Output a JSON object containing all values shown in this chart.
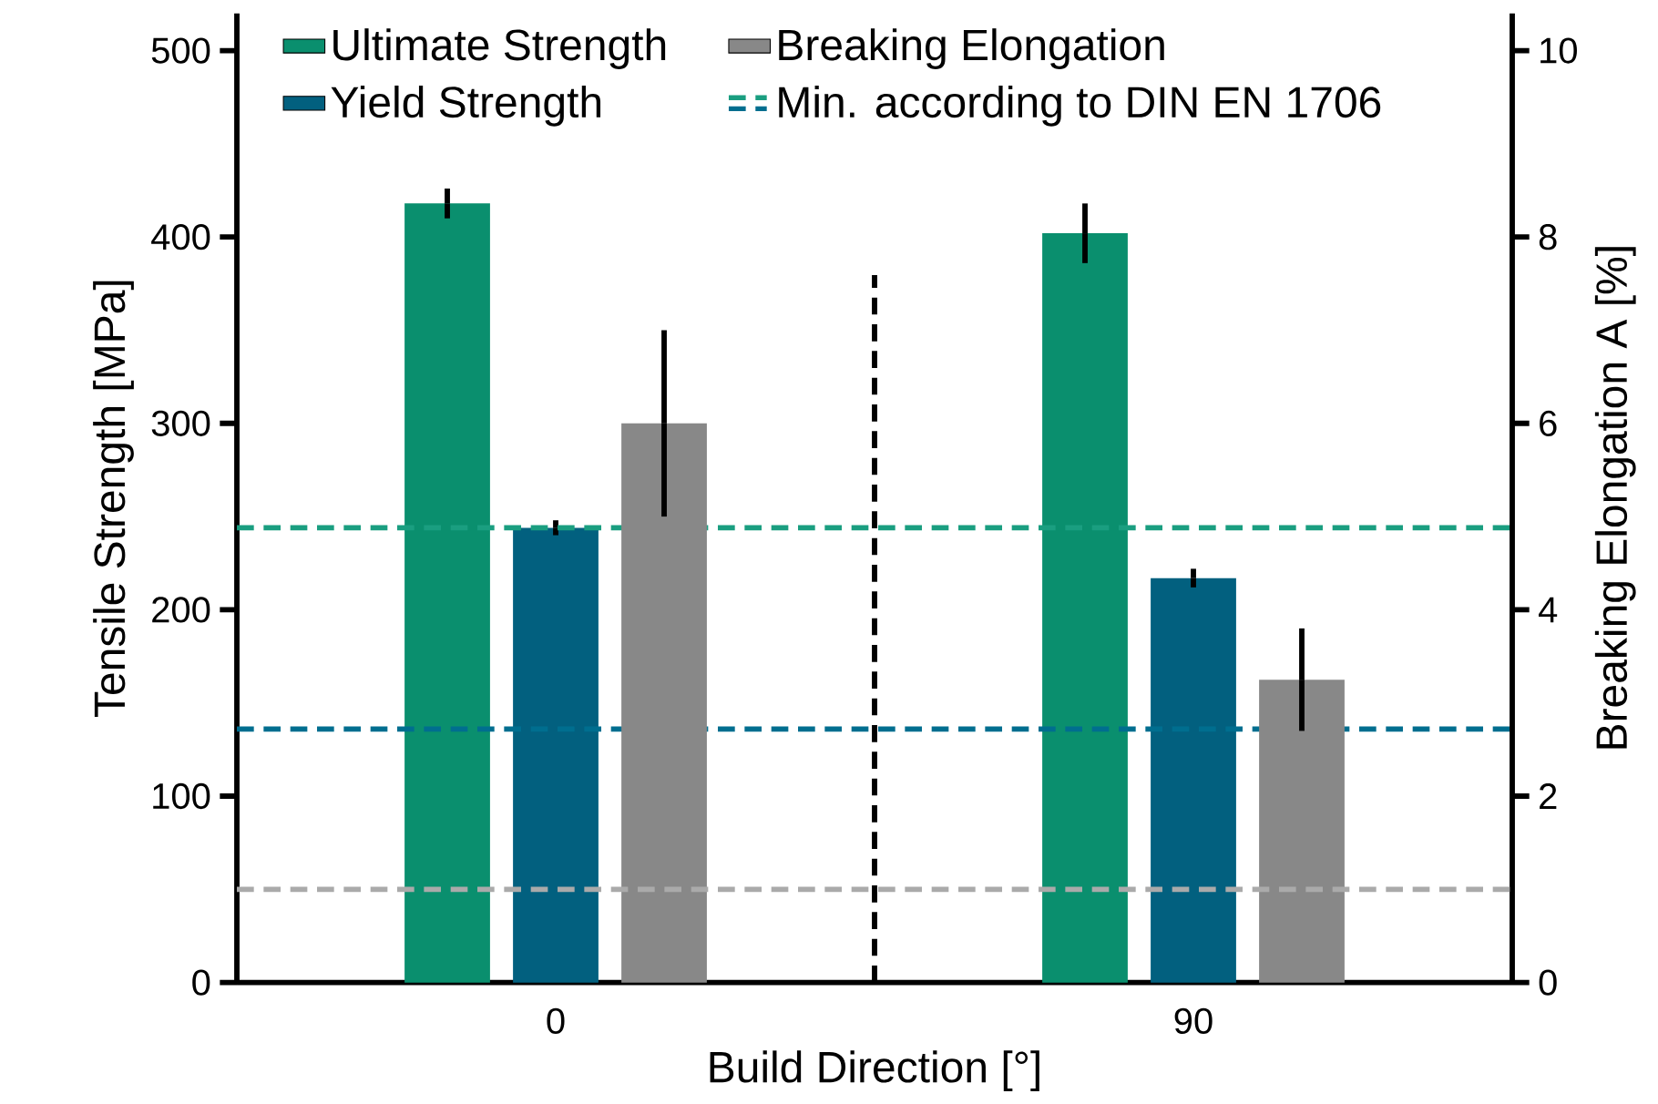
{
  "chart_data": {
    "type": "bar",
    "categories": [
      "0",
      "90"
    ],
    "xlabel": "Build Direction [°]",
    "ylabel": "Tensile Strength [MPa]",
    "y2label": "Breaking Elongation A [%]",
    "series": [
      {
        "name": "Ultimate Strength",
        "color": "#0a8f6e",
        "values": [
          418,
          402
        ],
        "errors": [
          8,
          16
        ]
      },
      {
        "name": "Yield Strength",
        "color": "#02607f",
        "values": [
          244,
          217
        ],
        "errors": [
          4,
          5
        ]
      },
      {
        "name": "Breaking Elongation",
        "color": "#888888",
        "values": [
          6.0,
          3.25
        ],
        "errors": [
          1.0,
          0.55
        ],
        "axis": "y2"
      }
    ],
    "ylim": [
      0,
      520
    ],
    "yticks": [
      0,
      100,
      200,
      300,
      400,
      500
    ],
    "y2lim": [
      0,
      10.4
    ],
    "y2ticks": [
      0,
      2,
      4,
      6,
      8,
      10
    ],
    "ref_lines": [
      {
        "axis": "y",
        "value": 244,
        "color": "#1a9e80",
        "line_style": "dashed",
        "label": "Min. according to DIN EN 1706"
      },
      {
        "axis": "y",
        "value": 136,
        "color": "#006e8f",
        "line_style": "dashed"
      },
      {
        "axis": "y2",
        "value": 1.0,
        "color": "#aaaaaa",
        "line_style": "dashed"
      }
    ],
    "legend": "top left"
  }
}
